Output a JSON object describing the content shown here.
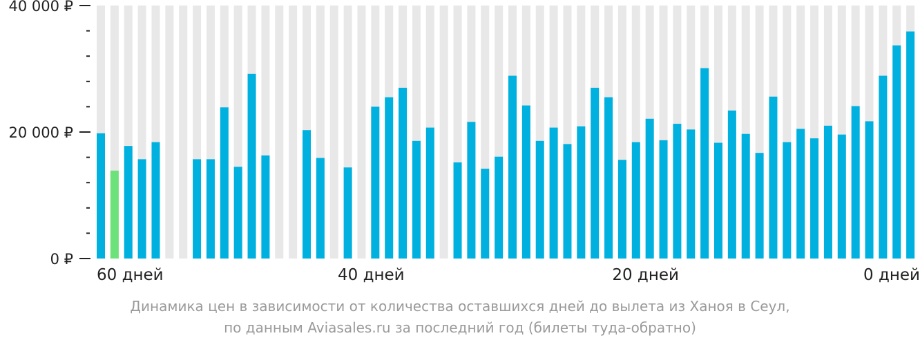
{
  "colors": {
    "bar": "#00b0de",
    "highlight_bar": "#6ee27a",
    "background_column": "#e8e8e8",
    "axis": "#222222",
    "caption": "#9a9a9a"
  },
  "chart_data": {
    "type": "bar",
    "ylim": [
      0,
      40000
    ],
    "yticks": [
      {
        "value": 0,
        "label": "0 ₽"
      },
      {
        "value": 20000,
        "label": "20 000 ₽"
      },
      {
        "value": 40000,
        "label": "40 000 ₽"
      }
    ],
    "yminor_step": 4000,
    "x_domain": [
      60,
      0
    ],
    "xticks": [
      {
        "value": 60,
        "label": "60 дней"
      },
      {
        "value": 40,
        "label": "40 дней"
      },
      {
        "value": 20,
        "label": "20 дней"
      },
      {
        "value": 0,
        "label": "0 дней"
      }
    ],
    "grid": false,
    "legend": "none",
    "series": [
      {
        "values": [
          19800,
          13900,
          17800,
          15700,
          18400,
          null,
          null,
          15700,
          15700,
          23900,
          14500,
          29200,
          16300,
          null,
          null,
          20300,
          15900,
          null,
          14400,
          null,
          24000,
          25500,
          27000,
          18600,
          20700,
          null,
          15200,
          21600,
          14200,
          16100,
          28900,
          24200,
          18600,
          20700,
          18100,
          20900,
          27000,
          25500,
          15600,
          18400,
          22100,
          18700,
          21300,
          20400,
          30100,
          18300,
          23400,
          19700,
          16700,
          25600,
          18400,
          20500,
          19000,
          21000,
          19600,
          24100,
          21700,
          28900,
          33700,
          35900
        ],
        "highlight_index": 1
      }
    ]
  },
  "caption": {
    "line1": "Динамика цен в зависимости от количества оставшихся дней до вылета из Ханоя в Сеул,",
    "line2": "по данным Aviasales.ru за последний год (билеты туда-обратно)"
  }
}
